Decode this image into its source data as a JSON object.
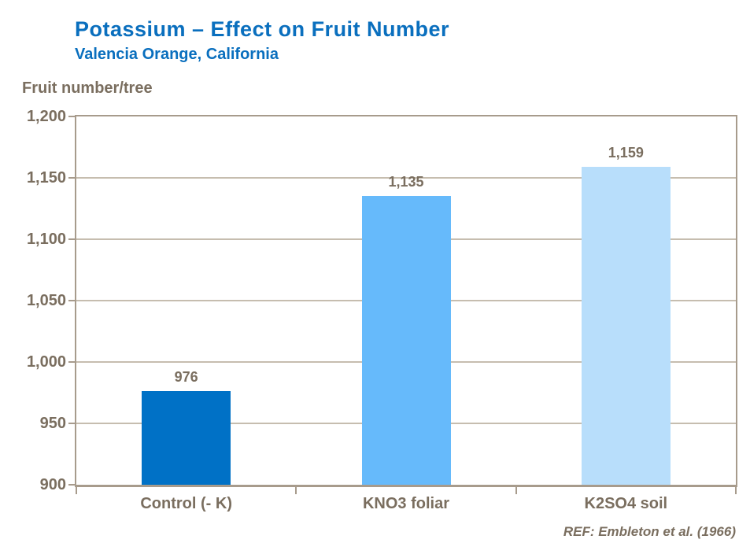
{
  "slide": {
    "title": "Potassium – Effect on Fruit Number",
    "subtitle": "Valencia Orange, California",
    "reference": "REF: Embleton et al. (1966)"
  },
  "colors": {
    "title_blue": "#0a6fbe",
    "text_brown": "#7a6e5f",
    "axis_line": "#a79b8c",
    "gridline": "#c6bdaf",
    "background": "#ffffff"
  },
  "chart_data": {
    "type": "bar",
    "title": "Potassium – Effect on Fruit Number",
    "subtitle": "Valencia Orange, California",
    "xlabel": "",
    "ylabel": "Fruit number/tree",
    "categories": [
      "Control (- K)",
      "KNO3 foliar",
      "K2SO4 soil"
    ],
    "values": [
      976,
      1135,
      1159
    ],
    "value_labels": [
      "976",
      "1,135",
      "1,159"
    ],
    "bar_colors": [
      "#0071c6",
      "#66bafb",
      "#b8defb"
    ],
    "ylim": [
      900,
      1200
    ],
    "ytick_step": 50,
    "ytick_values": [
      900,
      950,
      1000,
      1050,
      1100,
      1150,
      1200
    ],
    "ytick_labels": [
      "900",
      "950",
      "1,000",
      "1,050",
      "1,100",
      "1,150",
      "1,200"
    ],
    "grid": true,
    "legend": "none"
  }
}
